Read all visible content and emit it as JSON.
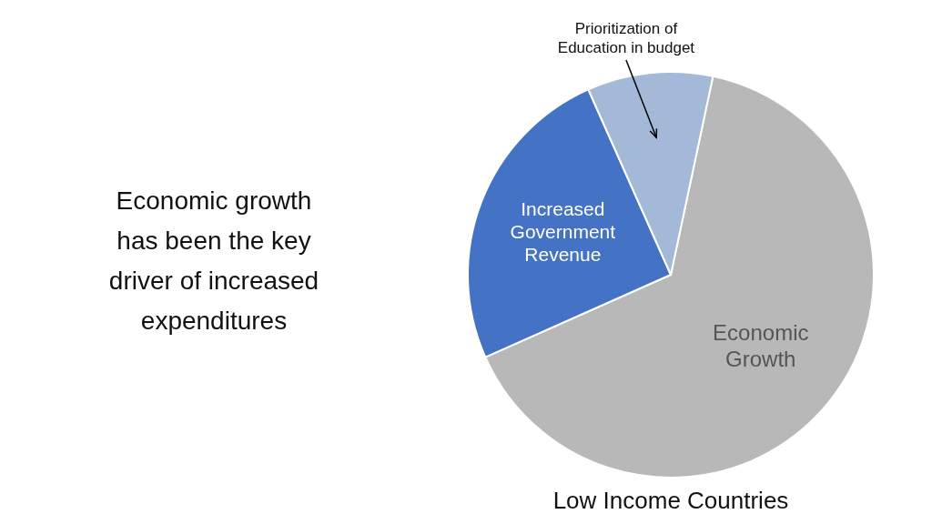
{
  "chart_data": {
    "type": "pie",
    "title": "Economic growth\nhas been the key\ndriver of increased\nexpenditures",
    "subtitle": "Low Income Countries",
    "categories": [
      "Economic\nGrowth",
      "Increased\nGovernment\nRevenue",
      null
    ],
    "values": [
      65,
      25,
      10
    ],
    "colors": [
      "#b8b8b8",
      "#4472c4",
      "#a4b8d8"
    ],
    "annotations": [
      {
        "text": "Prioritization of\nEducation in budget",
        "index": 2
      }
    ]
  }
}
